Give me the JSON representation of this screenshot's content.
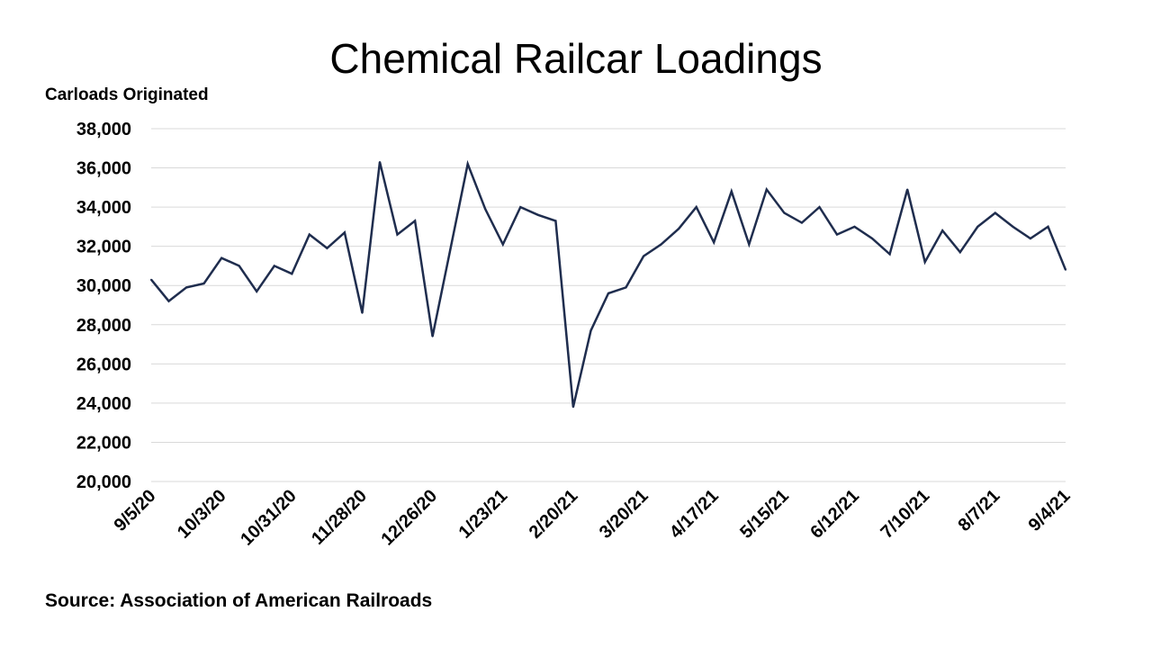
{
  "chart_data": {
    "type": "line",
    "title": "Chemical Railcar Loadings",
    "ylabel": "Carloads Originated",
    "source": "Source: Association of American Railroads",
    "ylim": [
      20000,
      38000
    ],
    "y_ticks": [
      "38,000",
      "36,000",
      "34,000",
      "32,000",
      "30,000",
      "28,000",
      "26,000",
      "24,000",
      "22,000",
      "20,000"
    ],
    "y_tick_values": [
      38000,
      36000,
      34000,
      32000,
      30000,
      28000,
      26000,
      24000,
      22000,
      20000
    ],
    "x_tick_labels": [
      "9/5/20",
      "10/3/20",
      "10/31/20",
      "11/28/20",
      "12/26/20",
      "1/23/21",
      "2/20/21",
      "3/20/21",
      "4/17/21",
      "5/15/21",
      "6/12/21",
      "7/10/21",
      "8/7/21",
      "9/4/21"
    ],
    "x_tick_index": [
      0,
      4,
      8,
      12,
      16,
      20,
      24,
      28,
      32,
      36,
      40,
      44,
      48,
      52
    ],
    "grid": true,
    "line_color": "#1f2d4e",
    "series": [
      {
        "values": [
          30300,
          29200,
          29900,
          30100,
          31400,
          31000,
          29700,
          31000,
          30600,
          32600,
          31900,
          32700,
          28600,
          36300,
          32600,
          33300,
          27400,
          31800,
          36200,
          33900,
          32100,
          34000,
          33600,
          33300,
          23800,
          27700,
          29600,
          29900,
          31500,
          32100,
          32900,
          34000,
          32200,
          34800,
          32100,
          34900,
          33700,
          33200,
          34000,
          32600,
          33000,
          32400,
          31600,
          34900,
          31200,
          32800,
          31700,
          33000,
          33700,
          33000,
          32400,
          33000,
          30800
        ]
      }
    ]
  }
}
